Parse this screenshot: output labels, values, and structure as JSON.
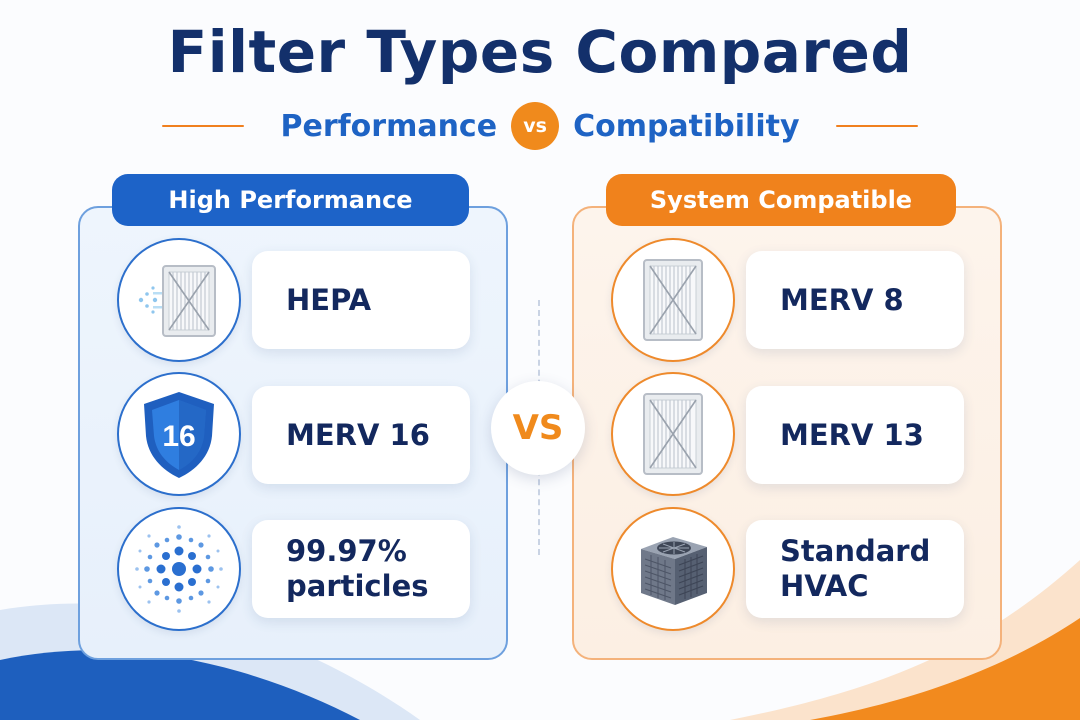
{
  "header": {
    "title": "Filter Types Compared",
    "subtitle_left": "Performance",
    "subtitle_vs": "vs",
    "subtitle_right": "Compatibility"
  },
  "center": {
    "vs_label": "VS"
  },
  "left_panel": {
    "heading": "High Performance",
    "items": [
      {
        "label": "HEPA",
        "icon": "hepa-filter-icon"
      },
      {
        "label": "MERV 16",
        "icon": "shield-icon",
        "icon_text": "16"
      },
      {
        "label": "99.97%\nparticles",
        "icon": "particles-icon"
      }
    ]
  },
  "right_panel": {
    "heading": "System Compatible",
    "items": [
      {
        "label": "MERV 8",
        "icon": "filter-icon"
      },
      {
        "label": "MERV 13",
        "icon": "filter-icon"
      },
      {
        "label": "Standard\nHVAC",
        "icon": "hvac-unit-icon"
      }
    ]
  },
  "colors": {
    "navy": "#13306b",
    "blue": "#1d63c8",
    "orange": "#f0821c",
    "blue_panel": "#e9f2fc",
    "orange_panel": "#fcf1e6"
  }
}
